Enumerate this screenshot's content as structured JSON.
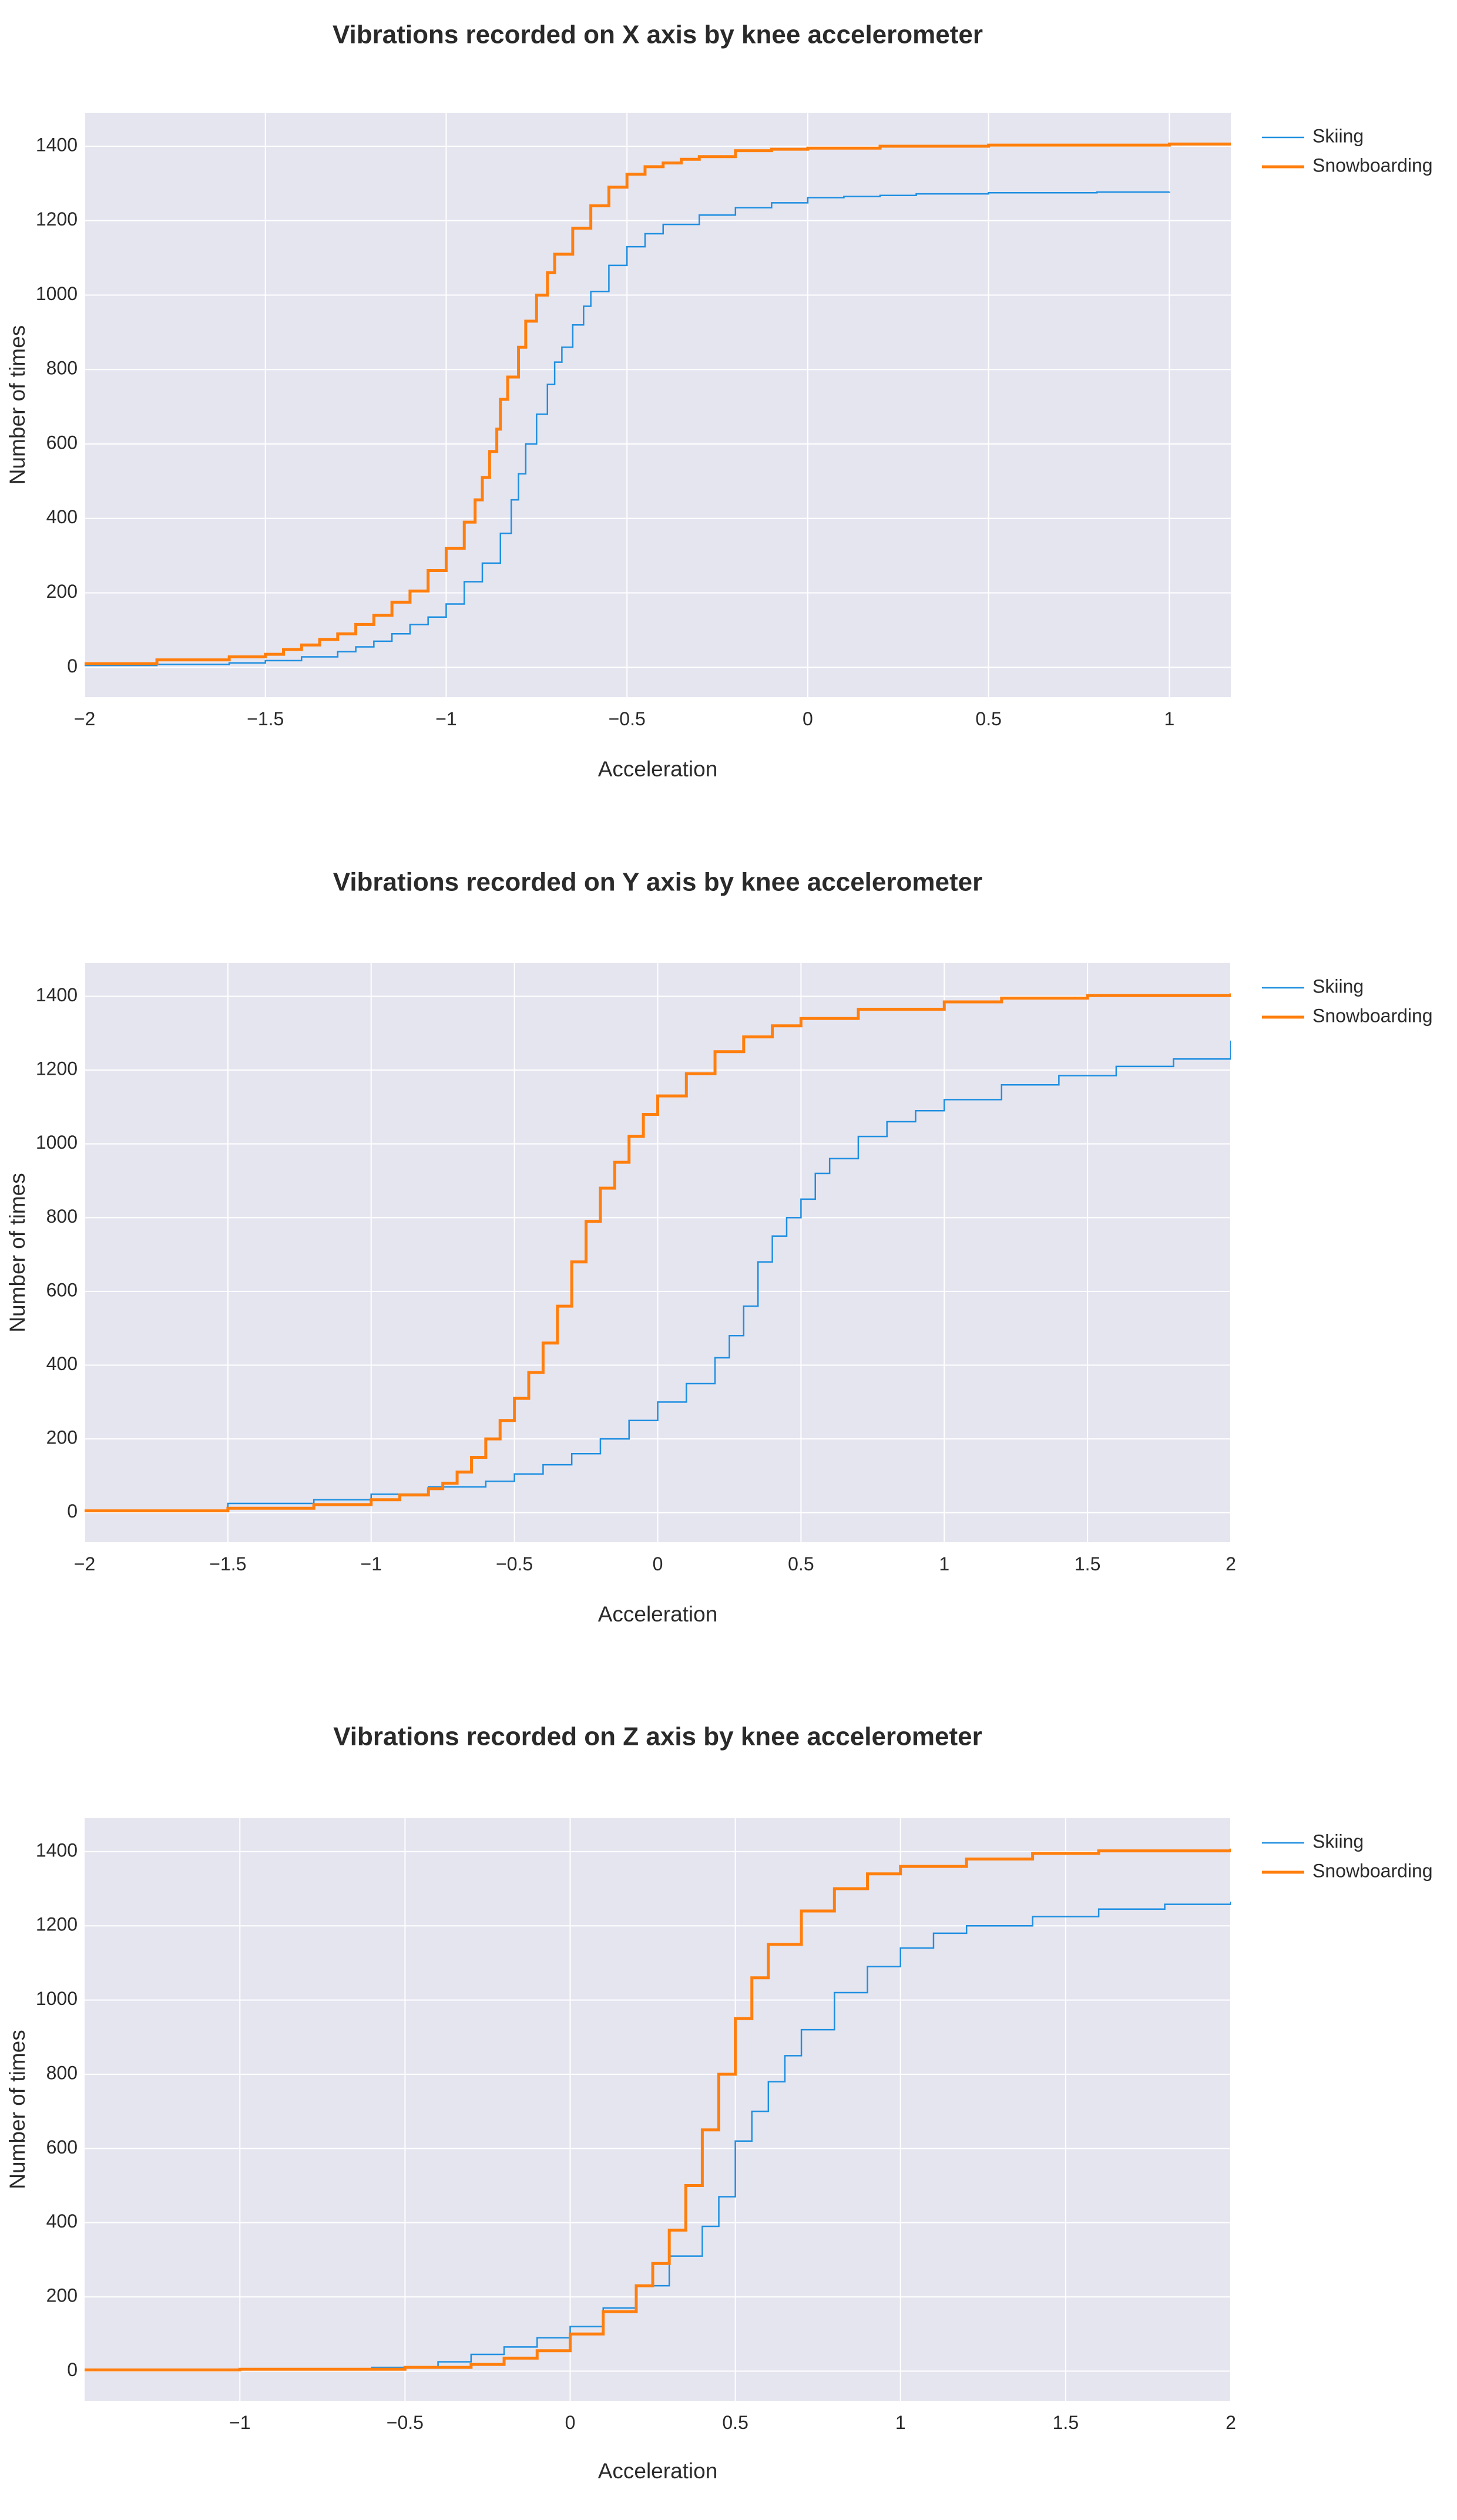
{
  "colors": {
    "skiing": "#1f8fe0",
    "snowboarding": "#ff7f0e",
    "plot_bg": "#e5e5f0",
    "grid": "#ffffff"
  },
  "chart_data": [
    {
      "type": "line",
      "line_shape": "step",
      "title": "Vibrations recorded on X axis by knee accelerometer",
      "xlabel": "Acceleration",
      "ylabel": "Number of times",
      "xlim": [
        -2,
        1.17
      ],
      "ylim": [
        -80,
        1490
      ],
      "xticks": [
        -2,
        -1.5,
        -1,
        -0.5,
        0,
        0.5,
        1
      ],
      "xtick_labels": [
        "−2",
        "−1.5",
        "−1",
        "−0.5",
        "0",
        "0.5",
        "1"
      ],
      "yticks": [
        0,
        200,
        400,
        600,
        800,
        1000,
        1200,
        1400
      ],
      "yticks_labels": [
        "0",
        "200",
        "400",
        "600",
        "800",
        "1000",
        "1200",
        "1400"
      ],
      "grid": true,
      "legend_position": "top-right",
      "series": [
        {
          "name": "Skiing",
          "color": "#1f8fe0",
          "x": [
            -2.0,
            -1.8,
            -1.6,
            -1.5,
            -1.4,
            -1.3,
            -1.25,
            -1.2,
            -1.15,
            -1.1,
            -1.05,
            -1.0,
            -0.95,
            -0.9,
            -0.85,
            -0.82,
            -0.8,
            -0.78,
            -0.75,
            -0.72,
            -0.7,
            -0.68,
            -0.65,
            -0.62,
            -0.6,
            -0.55,
            -0.5,
            -0.45,
            -0.4,
            -0.3,
            -0.2,
            -0.1,
            0.0,
            0.1,
            0.2,
            0.3,
            0.5,
            0.8,
            1.0
          ],
          "y": [
            5,
            8,
            12,
            18,
            28,
            42,
            55,
            70,
            90,
            115,
            135,
            170,
            230,
            280,
            360,
            450,
            520,
            600,
            680,
            760,
            820,
            860,
            920,
            970,
            1010,
            1080,
            1130,
            1165,
            1190,
            1215,
            1235,
            1248,
            1262,
            1265,
            1268,
            1272,
            1275,
            1277,
            1278
          ]
        },
        {
          "name": "Snowboarding",
          "color": "#ff7f0e",
          "x": [
            -2.0,
            -1.8,
            -1.6,
            -1.5,
            -1.45,
            -1.4,
            -1.35,
            -1.3,
            -1.25,
            -1.2,
            -1.15,
            -1.1,
            -1.05,
            -1.0,
            -0.95,
            -0.92,
            -0.9,
            -0.88,
            -0.86,
            -0.85,
            -0.83,
            -0.8,
            -0.78,
            -0.75,
            -0.72,
            -0.7,
            -0.65,
            -0.6,
            -0.55,
            -0.5,
            -0.45,
            -0.4,
            -0.35,
            -0.3,
            -0.2,
            -0.1,
            0.0,
            0.2,
            0.5,
            1.0,
            1.17
          ],
          "y": [
            10,
            20,
            28,
            35,
            48,
            60,
            75,
            90,
            115,
            140,
            175,
            205,
            260,
            320,
            390,
            450,
            510,
            580,
            640,
            720,
            780,
            860,
            930,
            1000,
            1060,
            1110,
            1180,
            1240,
            1290,
            1325,
            1345,
            1355,
            1365,
            1372,
            1388,
            1392,
            1395,
            1400,
            1403,
            1406,
            1408
          ]
        }
      ]
    },
    {
      "type": "line",
      "line_shape": "step",
      "title": "Vibrations recorded on Y axis by knee accelerometer",
      "xlabel": "Acceleration",
      "ylabel": "Number of times",
      "xlim": [
        -2,
        2
      ],
      "ylim": [
        -80,
        1490
      ],
      "xticks": [
        -2,
        -1.5,
        -1,
        -0.5,
        0,
        0.5,
        1,
        1.5,
        2
      ],
      "xtick_labels": [
        "−2",
        "−1.5",
        "−1",
        "−0.5",
        "0",
        "0.5",
        "1",
        "1.5",
        "2"
      ],
      "yticks": [
        0,
        200,
        400,
        600,
        800,
        1000,
        1200,
        1400
      ],
      "yticks_labels": [
        "0",
        "200",
        "400",
        "600",
        "800",
        "1000",
        "1200",
        "1400"
      ],
      "grid": true,
      "legend_position": "top-right",
      "series": [
        {
          "name": "Skiing",
          "color": "#1f8fe0",
          "x": [
            -2.0,
            -1.5,
            -1.2,
            -1.0,
            -0.8,
            -0.6,
            -0.5,
            -0.4,
            -0.3,
            -0.2,
            -0.1,
            0.0,
            0.1,
            0.2,
            0.25,
            0.3,
            0.35,
            0.4,
            0.45,
            0.5,
            0.55,
            0.6,
            0.7,
            0.8,
            0.9,
            1.0,
            1.2,
            1.4,
            1.6,
            1.8,
            2.0,
            2.0
          ],
          "y": [
            5,
            25,
            35,
            50,
            70,
            85,
            105,
            130,
            160,
            200,
            250,
            300,
            350,
            420,
            480,
            560,
            680,
            750,
            800,
            850,
            920,
            960,
            1020,
            1060,
            1090,
            1120,
            1160,
            1185,
            1210,
            1230,
            1240,
            1280
          ]
        },
        {
          "name": "Snowboarding",
          "color": "#ff7f0e",
          "x": [
            -2.0,
            -1.5,
            -1.2,
            -1.0,
            -0.9,
            -0.8,
            -0.75,
            -0.7,
            -0.65,
            -0.6,
            -0.55,
            -0.5,
            -0.45,
            -0.4,
            -0.35,
            -0.3,
            -0.25,
            -0.2,
            -0.15,
            -0.1,
            -0.05,
            0.0,
            0.1,
            0.2,
            0.3,
            0.4,
            0.5,
            0.7,
            1.0,
            1.2,
            1.5,
            2.0
          ],
          "y": [
            5,
            12,
            22,
            35,
            48,
            65,
            80,
            110,
            150,
            200,
            250,
            310,
            380,
            460,
            560,
            680,
            790,
            880,
            950,
            1020,
            1080,
            1130,
            1190,
            1250,
            1290,
            1320,
            1340,
            1365,
            1385,
            1395,
            1402,
            1408
          ]
        }
      ]
    },
    {
      "type": "line",
      "line_shape": "step",
      "title": "Vibrations recorded on Z axis by knee accelerometer",
      "xlabel": "Acceleration",
      "ylabel": "Number of times",
      "xlim": [
        -1.47,
        2
      ],
      "ylim": [
        -80,
        1490
      ],
      "xticks": [
        -1,
        -0.5,
        0,
        0.5,
        1,
        1.5,
        2
      ],
      "xtick_labels": [
        "−1",
        "−0.5",
        "0",
        "0.5",
        "1",
        "1.5",
        "2"
      ],
      "yticks": [
        0,
        200,
        400,
        600,
        800,
        1000,
        1200,
        1400
      ],
      "yticks_labels": [
        "0",
        "200",
        "400",
        "600",
        "800",
        "1000",
        "1200",
        "1400"
      ],
      "grid": true,
      "legend_position": "top-right",
      "series": [
        {
          "name": "Skiing",
          "color": "#1f8fe0",
          "x": [
            -1.47,
            -1.0,
            -0.6,
            -0.4,
            -0.3,
            -0.2,
            -0.1,
            0.0,
            0.1,
            0.2,
            0.3,
            0.4,
            0.45,
            0.5,
            0.55,
            0.6,
            0.65,
            0.7,
            0.8,
            0.9,
            1.0,
            1.1,
            1.2,
            1.4,
            1.6,
            1.8,
            2.0
          ],
          "y": [
            3,
            5,
            10,
            25,
            45,
            65,
            90,
            120,
            170,
            230,
            310,
            390,
            470,
            620,
            700,
            780,
            850,
            920,
            1020,
            1090,
            1140,
            1180,
            1200,
            1225,
            1245,
            1258,
            1265
          ]
        },
        {
          "name": "Snowboarding",
          "color": "#ff7f0e",
          "x": [
            -1.47,
            -1.0,
            -0.5,
            -0.3,
            -0.2,
            -0.1,
            0.0,
            0.1,
            0.2,
            0.25,
            0.3,
            0.35,
            0.4,
            0.45,
            0.5,
            0.55,
            0.6,
            0.7,
            0.8,
            0.9,
            1.0,
            1.2,
            1.4,
            1.6,
            2.0
          ],
          "y": [
            3,
            5,
            10,
            18,
            35,
            55,
            100,
            160,
            230,
            290,
            380,
            500,
            650,
            800,
            950,
            1060,
            1150,
            1240,
            1300,
            1340,
            1360,
            1380,
            1395,
            1402,
            1408
          ]
        }
      ]
    }
  ]
}
